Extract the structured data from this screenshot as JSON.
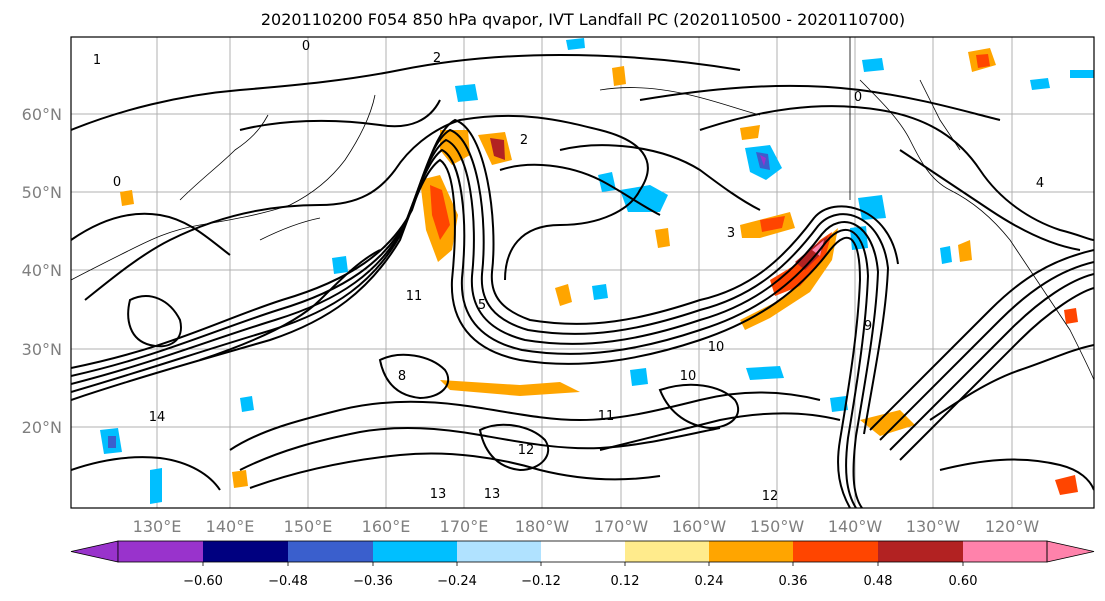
{
  "title": "2020110200 F054 850 hPa qvapor, IVT Landfall PC (2020110500 - 2020110700)",
  "map": {
    "lon_labels": [
      "130°E",
      "140°E",
      "150°E",
      "160°E",
      "170°E",
      "180°W",
      "170°W",
      "160°W",
      "150°W",
      "140°W",
      "130°W",
      "120°W"
    ],
    "lat_labels": [
      "60°N",
      "50°N",
      "40°N",
      "30°N",
      "20°N"
    ],
    "contour_labels": [
      "2",
      "1",
      "0",
      "2",
      "3",
      "4",
      "10",
      "11",
      "12",
      "13",
      "14",
      "11",
      "10",
      "8",
      "9",
      "5",
      "0",
      "0",
      "13",
      "12"
    ]
  },
  "colorbar": {
    "ticks": [
      "−0.60",
      "−0.48",
      "−0.36",
      "−0.24",
      "−0.12",
      "0.12",
      "0.24",
      "0.36",
      "0.48",
      "0.60"
    ],
    "colors": [
      "#9933cc",
      "#000080",
      "#3a5fcd",
      "#00bfff",
      "#b0e2ff",
      "#ffffff",
      "#ffeb8c",
      "#ffa500",
      "#ff4500",
      "#b22222",
      "#ff82ab"
    ]
  }
}
